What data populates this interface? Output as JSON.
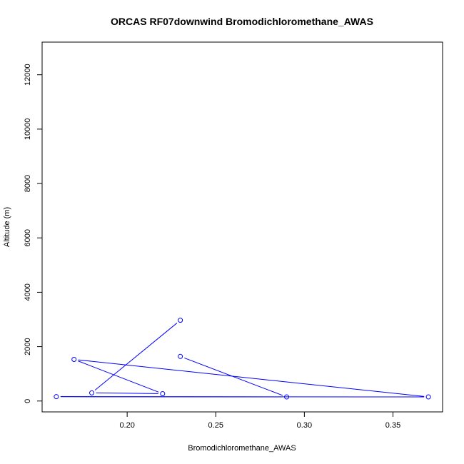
{
  "chart_data": {
    "type": "line",
    "title": "ORCAS RF07downwind Bromodichloromethane_AWAS",
    "xlabel": "Bromodichloromethane_AWAS",
    "ylabel": "Altitude (m)",
    "xlim": [
      0.152,
      0.378
    ],
    "ylim": [
      -400,
      13200
    ],
    "xticks": [
      0.2,
      0.25,
      0.3,
      0.35
    ],
    "xtick_labels": [
      "0.20",
      "0.25",
      "0.30",
      "0.35"
    ],
    "yticks": [
      0,
      2000,
      4000,
      6000,
      8000,
      10000,
      12000
    ],
    "ytick_labels": [
      "0",
      "2000",
      "4000",
      "6000",
      "8000",
      "10000",
      "12000"
    ],
    "series": [
      {
        "color": "#0000ff",
        "marker": "open-circle",
        "x": [
          0.23,
          0.18,
          0.22,
          0.17,
          0.37,
          0.16,
          0.29,
          0.23
        ],
        "y": [
          2970,
          300,
          270,
          1530,
          150,
          160,
          150,
          1640
        ]
      }
    ]
  }
}
